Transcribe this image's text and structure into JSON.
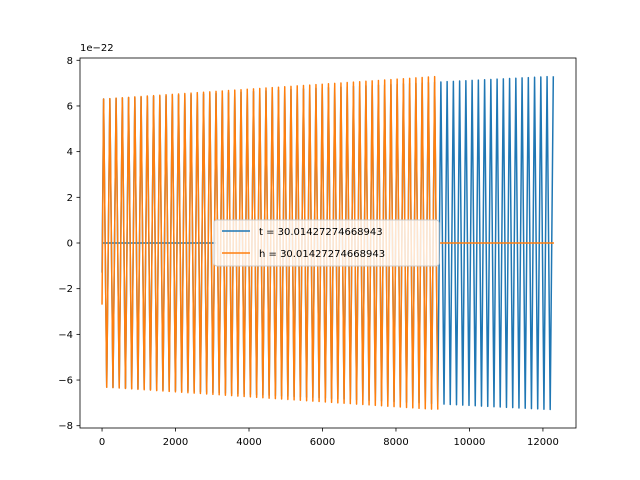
{
  "chart_data": {
    "type": "line",
    "title": "",
    "xlabel": "",
    "ylabel": "",
    "y_offset_label": "1e−22",
    "xlim": [
      -600,
      12900
    ],
    "ylim": [
      -8.1,
      8.1
    ],
    "y_scale_exponent": -22,
    "xticks": [
      0,
      2000,
      4000,
      6000,
      8000,
      10000,
      12000
    ],
    "xtick_labels": [
      "0",
      "2000",
      "4000",
      "6000",
      "8000",
      "10000",
      "12000"
    ],
    "yticks": [
      -8,
      -6,
      -4,
      -2,
      0,
      2,
      4,
      6,
      8
    ],
    "ytick_labels": [
      "−8",
      "−6",
      "−4",
      "−2",
      "0",
      "2",
      "4",
      "6",
      "8"
    ],
    "grid": false,
    "legend_position": "center",
    "series": [
      {
        "name": "t = 30.01427274668943",
        "color": "#1f77b4",
        "x_start": 0,
        "x_end": 12300,
        "period": 170,
        "amplitude_start": 6.3,
        "amplitude_end": 7.3,
        "initial_value": -1.3
      },
      {
        "name": "h = 30.01427274668943",
        "color": "#ff7f0e",
        "x_start": 0,
        "x_end": 9200,
        "period": 170,
        "amplitude_start": 6.3,
        "amplitude_end": 7.3,
        "initial_value": -2.7
      }
    ],
    "flat_segments": [
      {
        "series": 0,
        "x": [
          0,
          3100
        ],
        "y": 0
      },
      {
        "series": 1,
        "x": [
          9200,
          12300
        ],
        "y": 0
      }
    ]
  }
}
